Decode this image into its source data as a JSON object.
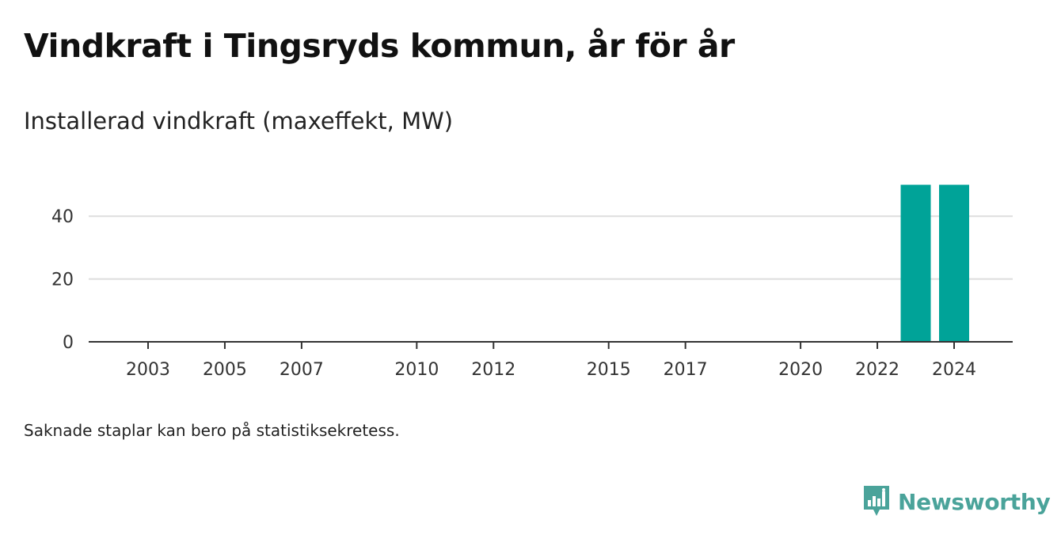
{
  "header": {
    "title": "Vindkraft i Tingsryds kommun, år för år",
    "subtitle": "Installerad vindkraft (maxeffekt, MW)"
  },
  "chart_data": {
    "type": "bar",
    "categories": [
      2002,
      2003,
      2004,
      2005,
      2006,
      2007,
      2008,
      2009,
      2010,
      2011,
      2012,
      2013,
      2014,
      2015,
      2016,
      2017,
      2018,
      2019,
      2020,
      2021,
      2022,
      2023,
      2024
    ],
    "values": [
      0,
      0,
      0,
      0,
      0,
      0,
      0,
      0,
      0,
      0,
      0,
      0,
      0,
      0,
      0,
      0,
      0,
      0,
      0,
      0,
      0,
      50,
      50
    ],
    "x_tick_labels": [
      "2003",
      "2005",
      "2007",
      "2010",
      "2012",
      "2015",
      "2017",
      "2020",
      "2022",
      "2024"
    ],
    "y_ticks": [
      0,
      20,
      40
    ],
    "ylim": [
      0,
      50
    ],
    "grid": true,
    "bar_color": "#00a398",
    "title": "Vindkraft i Tingsryds kommun, år för år",
    "ylabel": "Installerad vindkraft (maxeffekt, MW)",
    "xlabel": ""
  },
  "footer": {
    "note": "Saknade staplar kan bero på statistiksekretess.",
    "brand": "Newsworthy",
    "brand_icon": "newsworthy-logo-icon",
    "brand_color": "#4aa39a"
  }
}
